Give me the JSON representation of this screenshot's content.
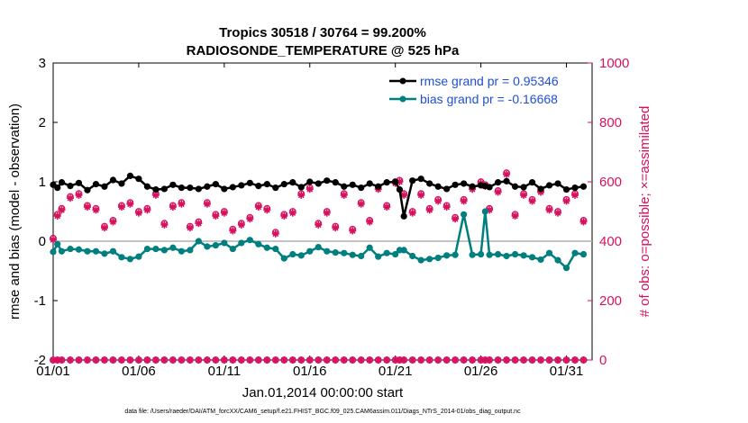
{
  "chart_data": {
    "type": "line",
    "title": "Tropics 30518 / 30764 = 99.200%",
    "subtitle": "RADIOSONDE_TEMPERATURE @ 525 hPa",
    "xlabel": "Jan.01,2014 00:00:00 start",
    "ylabel": "rmse and bias (model - observation)",
    "y2label": "# of obs: o=possible; ×=assimilated",
    "footnote": "data file: /Users/raeder/DAI/ATM_forcXX/CAM6_setup/f.e21.FHIST_BGC.f09_025.CAM6assim.011/Diags_NTrS_2014-01/obs_diag_output.nc",
    "xlim": [
      0,
      31.5
    ],
    "ylim": [
      -2,
      3
    ],
    "y2lim": [
      0,
      1000
    ],
    "xticks": [
      0,
      5,
      10,
      15,
      20,
      25,
      30
    ],
    "xtick_labels": [
      "01/01",
      "01/06",
      "01/11",
      "01/16",
      "01/21",
      "01/26",
      "01/31"
    ],
    "yticks": [
      -2,
      -1,
      0,
      1,
      2,
      3
    ],
    "ytick_labels": [
      "-2",
      "-1",
      "0",
      "1",
      "2",
      "3"
    ],
    "y2ticks": [
      0,
      200,
      400,
      600,
      800,
      1000
    ],
    "y2tick_labels": [
      "0",
      "200",
      "400",
      "600",
      "800",
      "1000"
    ],
    "x": [
      0,
      0.25,
      0.5,
      1.0,
      1.5,
      2.0,
      2.5,
      3.0,
      3.5,
      4.0,
      4.5,
      5.0,
      5.5,
      6.0,
      6.5,
      7.0,
      7.5,
      8.0,
      8.5,
      9.0,
      9.5,
      10.0,
      10.5,
      11.0,
      11.5,
      12.0,
      12.5,
      13.0,
      13.5,
      14.0,
      14.5,
      15.0,
      15.5,
      16.0,
      16.5,
      17.0,
      17.5,
      18.0,
      18.5,
      19.0,
      19.5,
      20.0,
      20.25,
      20.5,
      21.0,
      21.5,
      22.0,
      22.5,
      23.0,
      23.5,
      24.0,
      24.5,
      25.0,
      25.25,
      25.5,
      26.0,
      26.5,
      27.0,
      27.5,
      28.0,
      28.5,
      29.0,
      29.5,
      30.0,
      30.5,
      31.0
    ],
    "series": [
      {
        "name": "rmse",
        "legend": "rmse grand pr = 0.95346",
        "color": "#000000",
        "values": [
          0.95,
          0.9,
          0.99,
          0.93,
          0.98,
          0.86,
          0.96,
          0.92,
          1.03,
          0.97,
          1.1,
          1.05,
          0.92,
          0.87,
          0.88,
          0.95,
          0.9,
          0.9,
          0.88,
          0.92,
          0.96,
          0.88,
          0.91,
          0.94,
          0.98,
          0.93,
          0.96,
          0.9,
          0.96,
          0.99,
          0.91,
          1.0,
          0.97,
          1.02,
          0.99,
          0.92,
          0.95,
          0.9,
          0.97,
          0.92,
          0.99,
          1.0,
          0.87,
          0.42,
          1.02,
          1.05,
          0.97,
          0.92,
          0.88,
          0.95,
          0.97,
          0.92,
          0.94,
          0.93,
          0.91,
          0.99,
          1.01,
          0.92,
          0.91,
          0.99,
          0.88,
          0.94,
          0.97,
          0.87,
          0.9,
          0.92
        ]
      },
      {
        "name": "bias",
        "legend": "bias grand pr = -0.16668",
        "color": "#007f7f",
        "values": [
          -0.18,
          -0.05,
          -0.17,
          -0.13,
          -0.14,
          -0.17,
          -0.17,
          -0.21,
          -0.17,
          -0.27,
          -0.3,
          -0.26,
          -0.13,
          -0.13,
          -0.15,
          -0.11,
          -0.17,
          -0.15,
          0.0,
          -0.09,
          -0.07,
          -0.03,
          -0.13,
          -0.03,
          0.02,
          -0.05,
          -0.11,
          -0.13,
          -0.29,
          -0.22,
          -0.24,
          -0.17,
          -0.1,
          -0.17,
          -0.19,
          -0.2,
          -0.23,
          -0.25,
          -0.11,
          -0.26,
          -0.2,
          -0.22,
          -0.15,
          -0.15,
          -0.25,
          -0.32,
          -0.3,
          -0.28,
          -0.24,
          -0.23,
          0.45,
          -0.23,
          -0.22,
          0.5,
          -0.23,
          -0.22,
          -0.25,
          -0.22,
          -0.24,
          -0.27,
          -0.31,
          -0.2,
          -0.32,
          -0.45,
          -0.2,
          -0.22
        ]
      }
    ],
    "obs_possible": [
      410,
      490,
      510,
      550,
      560,
      520,
      510,
      450,
      470,
      520,
      530,
      500,
      510,
      560,
      460,
      520,
      530,
      450,
      465,
      530,
      490,
      500,
      440,
      460,
      480,
      520,
      510,
      430,
      490,
      500,
      560,
      580,
      460,
      500,
      450,
      560,
      440,
      530,
      470,
      580,
      520,
      600,
      605,
      560,
      500,
      560,
      510,
      540,
      520,
      480,
      540,
      580,
      600,
      590,
      510,
      570,
      630,
      490,
      560,
      540,
      570,
      510,
      500,
      540,
      560,
      470
    ],
    "obs_assimilated": [
      405,
      485,
      505,
      545,
      555,
      515,
      505,
      445,
      465,
      515,
      525,
      495,
      505,
      555,
      455,
      515,
      525,
      445,
      460,
      525,
      485,
      495,
      435,
      455,
      475,
      515,
      505,
      425,
      485,
      495,
      555,
      575,
      455,
      495,
      445,
      555,
      435,
      525,
      465,
      575,
      515,
      595,
      600,
      555,
      495,
      555,
      505,
      535,
      515,
      475,
      535,
      575,
      595,
      585,
      505,
      565,
      625,
      485,
      555,
      535,
      565,
      505,
      495,
      535,
      555,
      465
    ],
    "obs_bottom": 0,
    "obs_color": "#d6115e",
    "zero_line_color": "#b0b0b0"
  }
}
